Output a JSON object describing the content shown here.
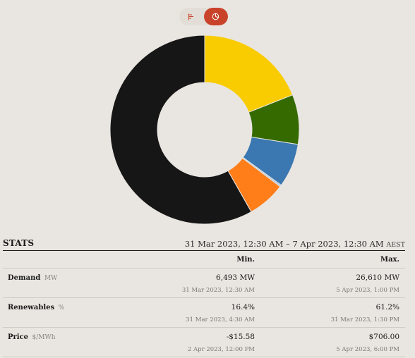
{
  "toggle": {
    "options": [
      {
        "icon": "bar-chart-icon",
        "active": false
      },
      {
        "icon": "pie-chart-icon",
        "active": true
      }
    ],
    "active_color": "#c9432b"
  },
  "chart_data": {
    "type": "pie",
    "donut": true,
    "slices": [
      {
        "value": 19.0,
        "color": "#f8cc00"
      },
      {
        "value": 8.5,
        "color": "#346a00"
      },
      {
        "value": 7.5,
        "color": "#3b77b0"
      },
      {
        "value": 0.3,
        "color": "#a9c8e8"
      },
      {
        "value": 6.5,
        "color": "#ff7e1a"
      },
      {
        "value": 58.2,
        "color": "#161616"
      }
    ]
  },
  "stats": {
    "title": "STATS",
    "range": "31 Mar 2023, 12:30 AM – 7 Apr 2023, 12:30 AM",
    "timezone": "AEST",
    "columns": {
      "min": "Min.",
      "max": "Max."
    },
    "rows": [
      {
        "label": "Demand",
        "unit": "MW",
        "min": "6,493 MW",
        "min_time": "31 Mar 2023, 12:30 AM",
        "max": "26,610 MW",
        "max_time": "5 Apr 2023, 1:00 PM"
      },
      {
        "label": "Renewables",
        "unit": "%",
        "min": "16.4%",
        "min_time": "31 Mar 2023, 4:30 AM",
        "max": "61.2%",
        "max_time": "31 Mar 2023, 1:30 PM"
      },
      {
        "label": "Price",
        "unit": "$/MWh",
        "min": "-$15.58",
        "min_time": "2 Apr 2023, 12:00 PM",
        "max": "$706.00",
        "max_time": "5 Apr 2023, 6:00 PM"
      }
    ]
  }
}
